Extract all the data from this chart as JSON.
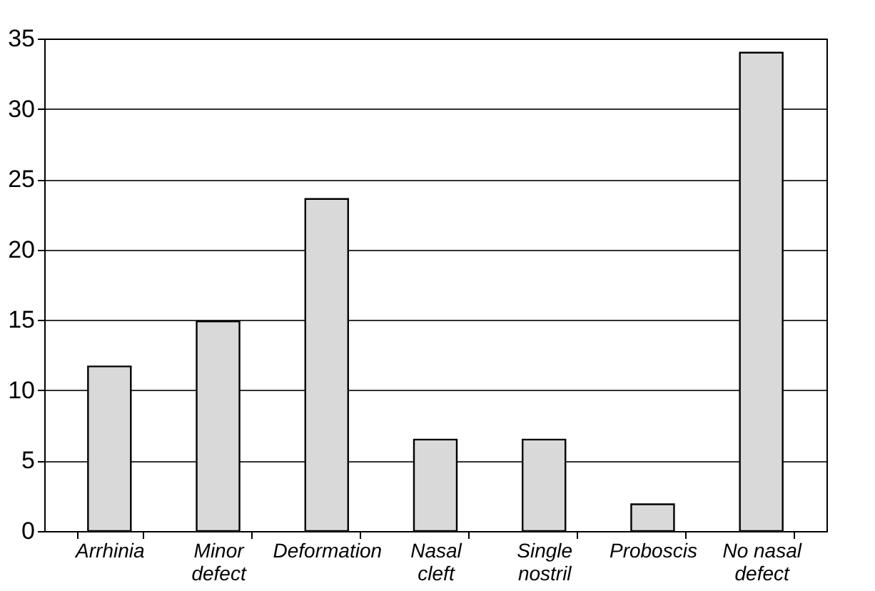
{
  "chart_data": {
    "type": "bar",
    "categories": [
      "Arrhinia",
      "Minor defect",
      "Deformation",
      "Nasal cleft",
      "Single nostril",
      "Proboscis",
      "No nasal defect"
    ],
    "values": [
      11.7,
      14.9,
      23.6,
      6.5,
      6.5,
      1.9,
      34.0
    ],
    "color": "#d9d9d9",
    "ylim": [
      0,
      35
    ],
    "yticks": [
      0,
      5,
      10,
      15,
      20,
      25,
      30,
      35
    ],
    "grid": "y"
  }
}
